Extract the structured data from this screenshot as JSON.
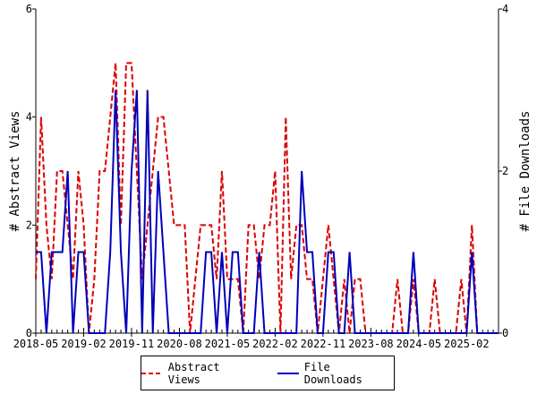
{
  "chart_data": {
    "type": "line",
    "title": "",
    "xlabel": "",
    "ylabel_left": "# Abstract Views",
    "ylabel_right": "# File Downloads",
    "ylim_left": [
      0,
      6
    ],
    "ylim_right": [
      0,
      4
    ],
    "yticks_left": [
      "0",
      "2",
      "4",
      "6"
    ],
    "yticks_right": [
      "0",
      "2",
      "4"
    ],
    "x_start": "2018-05",
    "x_tick_labels": [
      "2018-05",
      "2019-02",
      "2019-11",
      "2020-08",
      "2021-05",
      "2022-02",
      "2022-11",
      "2023-08",
      "2024-05",
      "2025-02"
    ],
    "x_tick_every_months": 9,
    "legend_position": "bottom",
    "series": [
      {
        "name": "Abstract Views",
        "axis": "left",
        "color": "#dd0000",
        "style": "dashed",
        "values": [
          1,
          4,
          2,
          1,
          3,
          3,
          2,
          1,
          3,
          2,
          0,
          1,
          3,
          3,
          4,
          5,
          2,
          5,
          5,
          3,
          1,
          2,
          3,
          4,
          4,
          3,
          2,
          2,
          2,
          0,
          1,
          2,
          2,
          2,
          1,
          3,
          1,
          1,
          1,
          0,
          2,
          2,
          1,
          2,
          2,
          3,
          0,
          4,
          1,
          2,
          2,
          1,
          1,
          0,
          1,
          2,
          1,
          0,
          1,
          0,
          1,
          1,
          0,
          0,
          0,
          0,
          0,
          0,
          1,
          0,
          0,
          1,
          0,
          0,
          0,
          1,
          0,
          0,
          0,
          0,
          1,
          0,
          2,
          0,
          0,
          0,
          0,
          0
        ]
      },
      {
        "name": "File Downloads",
        "axis": "right",
        "color": "#0000bb",
        "style": "solid",
        "values": [
          1,
          1,
          0,
          1,
          1,
          1,
          2,
          0,
          1,
          1,
          0,
          0,
          0,
          0,
          1,
          3,
          1,
          0,
          2,
          3,
          0,
          3,
          0,
          2,
          1,
          0,
          0,
          0,
          0,
          0,
          0,
          0,
          1,
          1,
          0,
          1,
          0,
          1,
          1,
          0,
          0,
          0,
          1,
          0,
          0,
          0,
          0,
          0,
          0,
          0,
          2,
          1,
          1,
          0,
          0,
          1,
          1,
          0,
          0,
          1,
          0,
          0,
          0,
          0,
          0,
          0,
          0,
          0,
          0,
          0,
          0,
          1,
          0,
          0,
          0,
          0,
          0,
          0,
          0,
          0,
          0,
          0,
          1,
          0,
          0,
          0,
          0,
          0
        ]
      }
    ]
  }
}
